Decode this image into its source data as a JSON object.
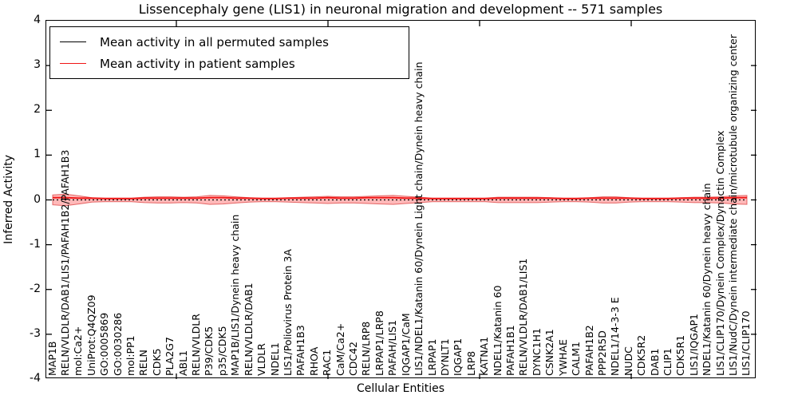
{
  "chart_data": {
    "type": "line",
    "title": "Lissencephaly gene (LIS1) in neuronal migration and development -- 571 samples",
    "xlabel": "Cellular Entities",
    "ylabel": "Inferred Activity",
    "ylim": [
      -4,
      4
    ],
    "yticks": [
      4,
      3,
      2,
      1,
      0,
      -1,
      -2,
      -3,
      -4
    ],
    "grid": false,
    "legend_position": "upper left",
    "categories": [
      "MAP1B",
      "RELN/VLDLR/DAB1/LIS1/PAFAH1B2/PAFAH1B3",
      "mol:Ca2+",
      "UniProt:Q4QZ09",
      "GO:0005869",
      "GO:0030286",
      "mol:PP1",
      "RELN",
      "CDK5",
      "PLA2G7",
      "ABL1",
      "RELN/VLDLR",
      "P39/CDK5",
      "p35/CDK5",
      "MAP1B/LIS1/Dynein heavy chain",
      "RELN/VLDLR/DAB1",
      "VLDLR",
      "NDEL1",
      "LIS1/Poliovirus Protein 3A",
      "PAFAH1B3",
      "RHOA",
      "RAC1",
      "CaM/Ca2+",
      "CDC42",
      "RELN/LRP8",
      "LRPAP1/LRP8",
      "PAFAH/LIS1",
      "IQGAP1/CaM",
      "LIS1/NDEL1/Katanin 60/Dynein Light chain/Dynein heavy chain",
      "LRPAP1",
      "DYNLT1",
      "IQGAP1",
      "LRP8",
      "KATNA1",
      "NDEL1/Katanin 60",
      "PAFAH1B1",
      "RELN/VLDLR/DAB1/LIS1",
      "DYNC1H1",
      "CSNK2A1",
      "YWHAE",
      "CALM1",
      "PAFAH1B2",
      "PPP2R5D",
      "NDEL1/14-3-3 E",
      "NUDC",
      "CDK5R2",
      "DAB1",
      "CLIP1",
      "CDK5R1",
      "LIS1/IQGAP1",
      "NDEL1/Katanin 60/Dynein heavy chain",
      "LIS1/CLIP170/Dynein Complex/Dynactin Complex",
      "LIS1/NudC/Dynein intermediate chain/microtubule organizing center",
      "LIS1/CLIP170"
    ],
    "series": [
      {
        "name": "Mean activity in all permuted samples",
        "color": "#000000",
        "style": "dashed",
        "values": [
          0,
          0,
          0,
          0,
          0,
          0,
          0,
          0,
          0,
          0,
          0,
          0,
          0,
          0,
          0,
          0,
          0,
          0,
          0,
          0,
          0,
          0,
          0,
          0,
          0,
          0,
          0,
          0,
          0,
          0,
          0,
          0,
          0,
          0,
          0,
          0,
          0,
          0,
          0,
          0,
          0,
          0,
          0,
          0,
          0,
          0,
          0,
          0,
          0,
          0,
          0,
          0,
          0,
          0
        ]
      },
      {
        "name": "Mean activity in patient samples",
        "color": "#f01616",
        "style": "solid",
        "values": [
          0.05,
          0.05,
          0.04,
          0.04,
          0.03,
          0.03,
          0.03,
          0.04,
          0.04,
          0.04,
          0.04,
          0.04,
          0.05,
          0.05,
          0.04,
          0.04,
          0.03,
          0.03,
          0.04,
          0.04,
          0.04,
          0.05,
          0.04,
          0.04,
          0.05,
          0.05,
          0.05,
          0.04,
          0.04,
          0.03,
          0.03,
          0.03,
          0.03,
          0.03,
          0.04,
          0.04,
          0.04,
          0.04,
          0.04,
          0.03,
          0.03,
          0.04,
          0.04,
          0.04,
          0.04,
          0.03,
          0.03,
          0.03,
          0.04,
          0.04,
          0.04,
          0.04,
          0.05,
          0.05
        ]
      }
    ],
    "band": {
      "name": "patient sample activity spread",
      "color": "rgba(255,70,70,0.38)",
      "edge_color": "rgba(215,40,40,0.65)",
      "halfwidths": [
        0.11,
        0.13,
        0.09,
        0.05,
        0.04,
        0.04,
        0.04,
        0.06,
        0.07,
        0.07,
        0.06,
        0.07,
        0.1,
        0.09,
        0.07,
        0.05,
        0.04,
        0.04,
        0.05,
        0.06,
        0.07,
        0.08,
        0.07,
        0.07,
        0.08,
        0.09,
        0.1,
        0.08,
        0.06,
        0.04,
        0.04,
        0.04,
        0.04,
        0.04,
        0.06,
        0.06,
        0.06,
        0.06,
        0.05,
        0.04,
        0.04,
        0.05,
        0.07,
        0.07,
        0.05,
        0.04,
        0.04,
        0.04,
        0.05,
        0.06,
        0.06,
        0.07,
        0.09,
        0.1
      ]
    }
  }
}
